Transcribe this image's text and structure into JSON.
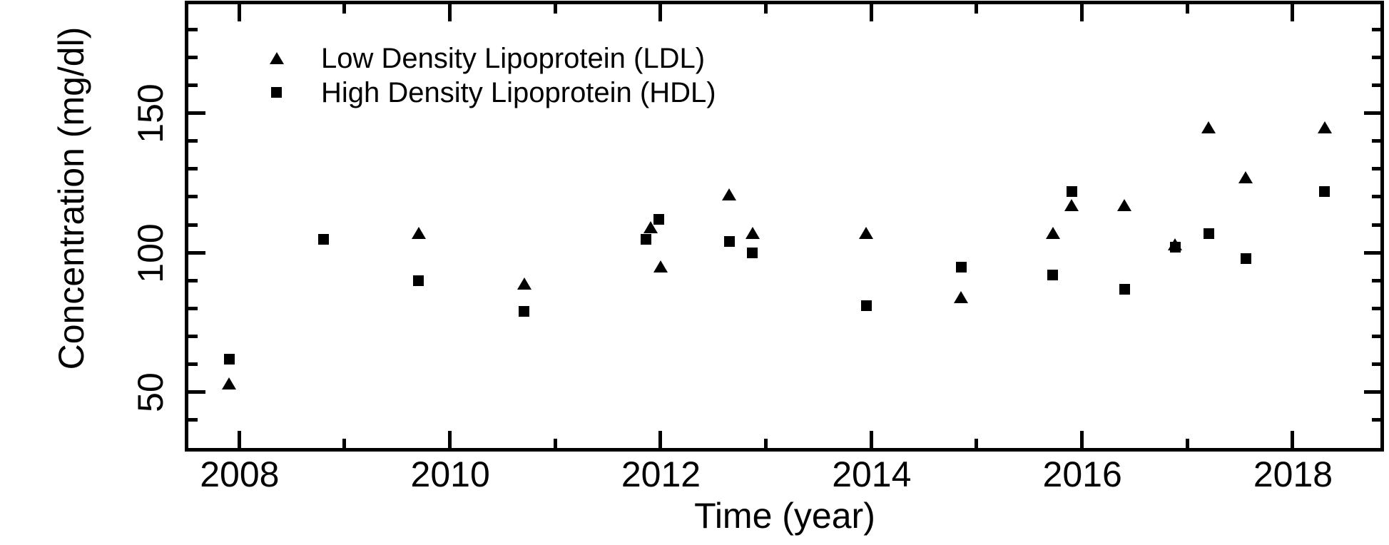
{
  "chart_data": {
    "type": "scatter",
    "title": "",
    "xlabel": "Time (year)",
    "ylabel": "Concentration (mg/dl)",
    "xlim": [
      2007.5,
      2018.85
    ],
    "ylim": [
      30,
      190
    ],
    "grid": false,
    "legend_position": "top-left inside",
    "x_major_ticks": [
      2008,
      2010,
      2012,
      2014,
      2016,
      2018
    ],
    "x_minor_ticks": [
      2009,
      2011,
      2013,
      2015,
      2017
    ],
    "y_major_ticks": [
      50,
      100,
      150
    ],
    "y_minor_ticks": [
      40,
      60,
      70,
      80,
      90,
      110,
      120,
      130,
      140,
      160,
      170,
      180
    ],
    "marker_color": "#000000",
    "series": [
      {
        "name": "Low Density Lipoprotein (LDL)",
        "marker": "triangle",
        "points": [
          [
            2007.9,
            53
          ],
          [
            2009.7,
            107
          ],
          [
            2010.7,
            89
          ],
          [
            2011.9,
            109
          ],
          [
            2012.0,
            95
          ],
          [
            2012.65,
            121
          ],
          [
            2012.87,
            107
          ],
          [
            2013.95,
            107
          ],
          [
            2014.85,
            84
          ],
          [
            2015.72,
            107
          ],
          [
            2015.9,
            117
          ],
          [
            2016.4,
            117
          ],
          [
            2016.88,
            103
          ],
          [
            2017.2,
            145
          ],
          [
            2017.55,
            127
          ],
          [
            2018.3,
            145
          ]
        ]
      },
      {
        "name": "High Density Lipoprotein (HDL)",
        "marker": "square",
        "points": [
          [
            2007.9,
            62
          ],
          [
            2008.8,
            105
          ],
          [
            2009.7,
            90
          ],
          [
            2010.7,
            79
          ],
          [
            2011.86,
            105
          ],
          [
            2011.98,
            112
          ],
          [
            2012.65,
            104
          ],
          [
            2012.87,
            100
          ],
          [
            2013.95,
            81
          ],
          [
            2014.85,
            95
          ],
          [
            2015.72,
            92
          ],
          [
            2015.9,
            122
          ],
          [
            2016.4,
            87
          ],
          [
            2016.88,
            102
          ],
          [
            2017.2,
            107
          ],
          [
            2017.55,
            98
          ],
          [
            2018.3,
            122
          ]
        ]
      }
    ]
  }
}
